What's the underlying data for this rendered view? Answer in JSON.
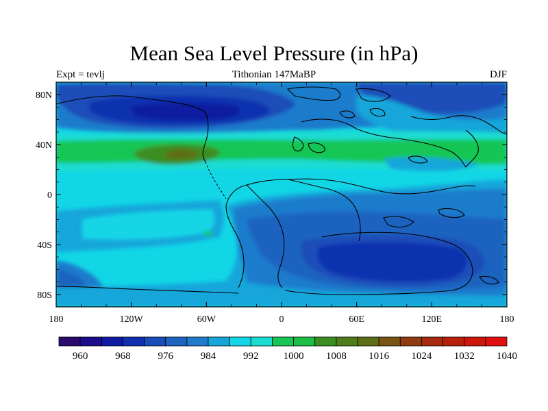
{
  "title": "Mean Sea Level Pressure (in hPa)",
  "left_label": "Expt = tevlj",
  "center_label": "Tithonian 147MaBP",
  "right_label": "DJF",
  "lat_ticks": [
    {
      "label": "80N",
      "lat": 80
    },
    {
      "label": "40N",
      "lat": 40
    },
    {
      "label": "0",
      "lat": 0
    },
    {
      "label": "40S",
      "lat": -40
    },
    {
      "label": "80S",
      "lat": -80
    }
  ],
  "lon_ticks": [
    {
      "label": "180",
      "lon": -180
    },
    {
      "label": "120W",
      "lon": -120
    },
    {
      "label": "60W",
      "lon": -60
    },
    {
      "label": "0",
      "lon": 0
    },
    {
      "label": "60E",
      "lon": 60
    },
    {
      "label": "120E",
      "lon": 120
    },
    {
      "label": "180",
      "lon": 180
    }
  ],
  "colorbar": {
    "min": 956,
    "step": 4,
    "colors": [
      "#2a0a6e",
      "#1c0d8c",
      "#0f1aa0",
      "#1030b0",
      "#1a4db8",
      "#1e63c0",
      "#1f7ccc",
      "#17a6da",
      "#12d6e6",
      "#1adcd2",
      "#18c655",
      "#1bbf45",
      "#3c8e22",
      "#4f7d1c",
      "#5e6e16",
      "#7a5414",
      "#8f3c12",
      "#a52a10",
      "#b8200e",
      "#cc160c",
      "#de1010"
    ],
    "labels": [
      {
        "text": "960",
        "value": 960
      },
      {
        "text": "968",
        "value": 968
      },
      {
        "text": "976",
        "value": 976
      },
      {
        "text": "984",
        "value": 984
      },
      {
        "text": "992",
        "value": 992
      },
      {
        "text": "1000",
        "value": 1000
      },
      {
        "text": "1008",
        "value": 1008
      },
      {
        "text": "1016",
        "value": 1016
      },
      {
        "text": "1024",
        "value": 1024
      },
      {
        "text": "1032",
        "value": 1032
      },
      {
        "text": "1040",
        "value": 1040
      }
    ]
  },
  "chart_data": {
    "type": "heatmap",
    "title": "Mean Sea Level Pressure (in hPa)",
    "subtitle": "Tithonian 147MaBP",
    "experiment": "Expt = tevlj",
    "season": "DJF",
    "xlim": [
      -180,
      180
    ],
    "ylim": [
      -90,
      90
    ],
    "units": "hPa",
    "features": [
      {
        "name": "arctic_low",
        "pressure": 972,
        "lon": -75,
        "lat": 68
      },
      {
        "name": "subtropical_high_pacific",
        "pressure": 1012,
        "lon": -75,
        "lat": 33
      },
      {
        "name": "southern_low_africa_antarctica",
        "pressure": 972,
        "lon": 95,
        "lat": -55
      },
      {
        "name": "southern_low_pacific",
        "pressure": 980,
        "lon": -165,
        "lat": -70
      },
      {
        "name": "subtropical_high_east",
        "pressure": 1008,
        "lon": 90,
        "lat": 34
      }
    ]
  }
}
